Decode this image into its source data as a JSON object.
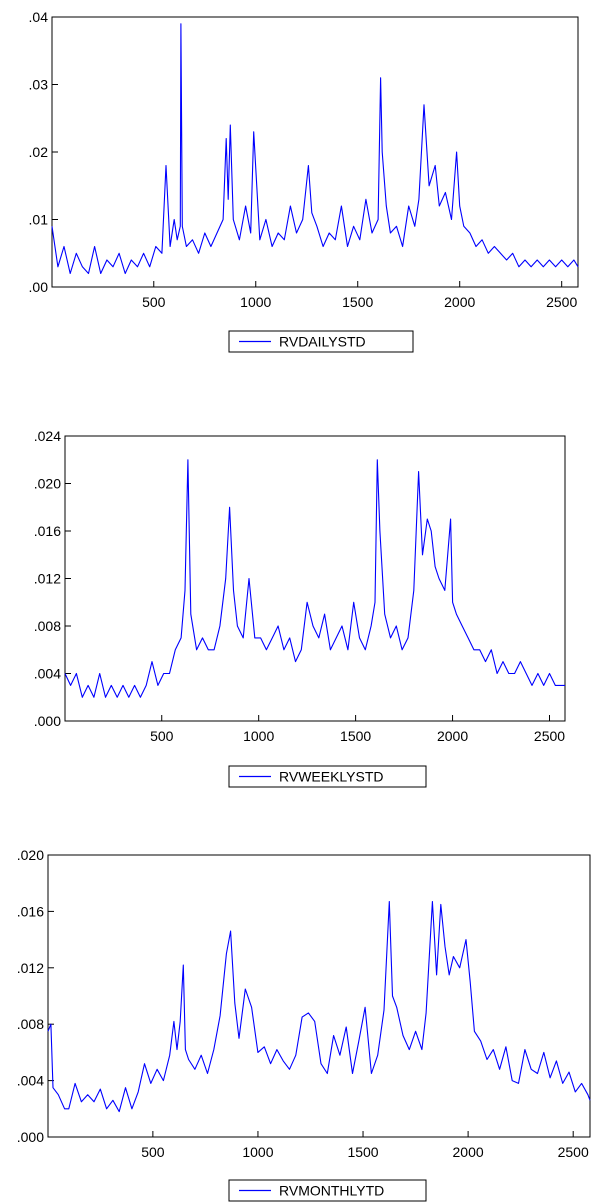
{
  "chart_data": [
    {
      "type": "line",
      "legend_position": "bottom",
      "color": "#0000ff",
      "xlim": [
        1,
        2580
      ],
      "ylim": [
        0,
        0.04
      ],
      "x_ticks": [
        500,
        1000,
        1500,
        2000,
        2500
      ],
      "x_tick_labels": [
        "500",
        "1000",
        "1500",
        "2000",
        "2500"
      ],
      "y_ticks": [
        0,
        0.01,
        0.02,
        0.03,
        0.04
      ],
      "y_tick_labels": [
        ".00",
        ".01",
        ".02",
        ".03",
        ".04"
      ],
      "series": [
        {
          "name": "RVDAILYSTD",
          "x": [
            1,
            30,
            60,
            90,
            120,
            150,
            180,
            210,
            240,
            270,
            300,
            330,
            360,
            390,
            420,
            450,
            480,
            510,
            540,
            560,
            580,
            600,
            615,
            630,
            633,
            640,
            660,
            690,
            720,
            750,
            780,
            810,
            840,
            855,
            865,
            875,
            890,
            920,
            950,
            975,
            990,
            1020,
            1050,
            1080,
            1110,
            1140,
            1170,
            1200,
            1230,
            1258,
            1275,
            1300,
            1330,
            1360,
            1390,
            1420,
            1450,
            1480,
            1510,
            1540,
            1570,
            1600,
            1612,
            1620,
            1640,
            1660,
            1690,
            1720,
            1750,
            1780,
            1800,
            1825,
            1850,
            1880,
            1900,
            1930,
            1960,
            1985,
            2000,
            2020,
            2050,
            2080,
            2110,
            2140,
            2170,
            2200,
            2230,
            2260,
            2290,
            2320,
            2350,
            2380,
            2410,
            2440,
            2470,
            2500,
            2530,
            2560,
            2580
          ],
          "y": [
            0.009,
            0.003,
            0.006,
            0.002,
            0.005,
            0.003,
            0.002,
            0.006,
            0.002,
            0.004,
            0.003,
            0.005,
            0.002,
            0.004,
            0.003,
            0.005,
            0.003,
            0.006,
            0.005,
            0.018,
            0.006,
            0.01,
            0.007,
            0.009,
            0.039,
            0.009,
            0.006,
            0.007,
            0.005,
            0.008,
            0.006,
            0.008,
            0.01,
            0.022,
            0.013,
            0.024,
            0.01,
            0.007,
            0.012,
            0.008,
            0.023,
            0.007,
            0.01,
            0.006,
            0.008,
            0.007,
            0.012,
            0.008,
            0.01,
            0.018,
            0.011,
            0.009,
            0.006,
            0.008,
            0.007,
            0.012,
            0.006,
            0.009,
            0.007,
            0.013,
            0.008,
            0.01,
            0.031,
            0.02,
            0.012,
            0.008,
            0.009,
            0.006,
            0.012,
            0.009,
            0.013,
            0.027,
            0.015,
            0.018,
            0.012,
            0.014,
            0.01,
            0.02,
            0.012,
            0.009,
            0.008,
            0.006,
            0.007,
            0.005,
            0.006,
            0.005,
            0.004,
            0.005,
            0.003,
            0.004,
            0.003,
            0.004,
            0.003,
            0.004,
            0.003,
            0.004,
            0.003,
            0.004,
            0.003
          ]
        }
      ]
    },
    {
      "type": "line",
      "legend_position": "bottom",
      "color": "#0000ff",
      "xlim": [
        1,
        2580
      ],
      "ylim": [
        0,
        0.024
      ],
      "x_ticks": [
        500,
        1000,
        1500,
        2000,
        2500
      ],
      "x_tick_labels": [
        "500",
        "1000",
        "1500",
        "2000",
        "2500"
      ],
      "y_ticks": [
        0,
        0.004,
        0.008,
        0.012,
        0.016,
        0.02,
        0.024
      ],
      "y_tick_labels": [
        ".000",
        ".004",
        ".008",
        ".012",
        ".016",
        ".020",
        ".024"
      ],
      "series": [
        {
          "name": "RVWEEKLYSTD",
          "x": [
            1,
            30,
            60,
            90,
            120,
            150,
            180,
            210,
            240,
            270,
            300,
            330,
            360,
            390,
            420,
            450,
            480,
            510,
            540,
            570,
            600,
            620,
            635,
            650,
            680,
            710,
            740,
            770,
            800,
            830,
            850,
            870,
            890,
            920,
            950,
            980,
            1010,
            1040,
            1070,
            1100,
            1130,
            1160,
            1190,
            1220,
            1250,
            1280,
            1310,
            1340,
            1370,
            1400,
            1430,
            1460,
            1490,
            1520,
            1550,
            1580,
            1600,
            1612,
            1625,
            1650,
            1680,
            1710,
            1740,
            1770,
            1800,
            1825,
            1845,
            1870,
            1890,
            1910,
            1930,
            1960,
            1990,
            2000,
            2020,
            2050,
            2080,
            2110,
            2140,
            2170,
            2200,
            2230,
            2260,
            2290,
            2320,
            2350,
            2380,
            2410,
            2440,
            2470,
            2500,
            2530,
            2560,
            2580
          ],
          "y": [
            0.004,
            0.003,
            0.004,
            0.002,
            0.003,
            0.002,
            0.004,
            0.002,
            0.003,
            0.002,
            0.003,
            0.002,
            0.003,
            0.002,
            0.003,
            0.005,
            0.003,
            0.004,
            0.004,
            0.006,
            0.007,
            0.011,
            0.022,
            0.009,
            0.006,
            0.007,
            0.006,
            0.006,
            0.008,
            0.012,
            0.018,
            0.011,
            0.008,
            0.007,
            0.012,
            0.007,
            0.007,
            0.006,
            0.007,
            0.008,
            0.006,
            0.007,
            0.005,
            0.006,
            0.01,
            0.008,
            0.007,
            0.009,
            0.006,
            0.007,
            0.008,
            0.006,
            0.01,
            0.007,
            0.006,
            0.008,
            0.01,
            0.022,
            0.016,
            0.009,
            0.007,
            0.008,
            0.006,
            0.007,
            0.011,
            0.021,
            0.014,
            0.017,
            0.016,
            0.013,
            0.012,
            0.011,
            0.017,
            0.01,
            0.009,
            0.008,
            0.007,
            0.006,
            0.006,
            0.005,
            0.006,
            0.004,
            0.005,
            0.004,
            0.004,
            0.005,
            0.004,
            0.003,
            0.004,
            0.003,
            0.004,
            0.003,
            0.003,
            0.003
          ]
        }
      ]
    },
    {
      "type": "line",
      "legend_position": "bottom",
      "color": "#0000ff",
      "xlim": [
        1,
        2580
      ],
      "ylim": [
        0,
        0.02
      ],
      "x_ticks": [
        500,
        1000,
        1500,
        2000,
        2500
      ],
      "x_tick_labels": [
        "500",
        "1000",
        "1500",
        "2000",
        "2500"
      ],
      "y_ticks": [
        0,
        0.004,
        0.008,
        0.012,
        0.016,
        0.02
      ],
      "y_tick_labels": [
        ".000",
        ".004",
        ".008",
        ".012",
        ".016",
        ".020"
      ],
      "series": [
        {
          "name": "RVMONTHLYTD",
          "x": [
            1,
            15,
            25,
            50,
            80,
            100,
            130,
            160,
            190,
            220,
            250,
            280,
            310,
            340,
            370,
            400,
            430,
            460,
            490,
            520,
            550,
            580,
            600,
            615,
            630,
            645,
            655,
            670,
            700,
            730,
            760,
            790,
            820,
            850,
            870,
            890,
            910,
            940,
            970,
            1000,
            1030,
            1060,
            1090,
            1120,
            1150,
            1180,
            1210,
            1240,
            1270,
            1300,
            1330,
            1360,
            1390,
            1420,
            1450,
            1480,
            1510,
            1540,
            1570,
            1600,
            1625,
            1640,
            1660,
            1690,
            1720,
            1750,
            1780,
            1800,
            1830,
            1850,
            1870,
            1890,
            1910,
            1930,
            1960,
            1990,
            2010,
            2030,
            2060,
            2090,
            2120,
            2150,
            2180,
            2210,
            2240,
            2270,
            2300,
            2330,
            2360,
            2390,
            2420,
            2450,
            2480,
            2510,
            2540,
            2570,
            2580
          ],
          "y": [
            0.0075,
            0.008,
            0.0035,
            0.003,
            0.002,
            0.002,
            0.0038,
            0.0025,
            0.003,
            0.0025,
            0.0034,
            0.002,
            0.0026,
            0.0018,
            0.0035,
            0.002,
            0.0032,
            0.0052,
            0.0038,
            0.0048,
            0.004,
            0.0058,
            0.0082,
            0.0062,
            0.0082,
            0.0122,
            0.0062,
            0.0055,
            0.0048,
            0.0058,
            0.0045,
            0.0062,
            0.0086,
            0.013,
            0.0146,
            0.0095,
            0.007,
            0.0105,
            0.0092,
            0.006,
            0.0064,
            0.0052,
            0.0062,
            0.0054,
            0.0048,
            0.0058,
            0.0085,
            0.0088,
            0.0082,
            0.0052,
            0.0045,
            0.0072,
            0.0058,
            0.0078,
            0.0045,
            0.0068,
            0.0092,
            0.0045,
            0.0058,
            0.009,
            0.0167,
            0.01,
            0.0092,
            0.0072,
            0.0062,
            0.0075,
            0.0062,
            0.0088,
            0.0167,
            0.0115,
            0.0165,
            0.0135,
            0.0115,
            0.0128,
            0.012,
            0.014,
            0.011,
            0.0075,
            0.0068,
            0.0055,
            0.0062,
            0.0048,
            0.0064,
            0.004,
            0.0038,
            0.0062,
            0.0048,
            0.0045,
            0.006,
            0.0042,
            0.0054,
            0.0038,
            0.0046,
            0.0032,
            0.0038,
            0.003,
            0.0026
          ]
        }
      ]
    }
  ]
}
